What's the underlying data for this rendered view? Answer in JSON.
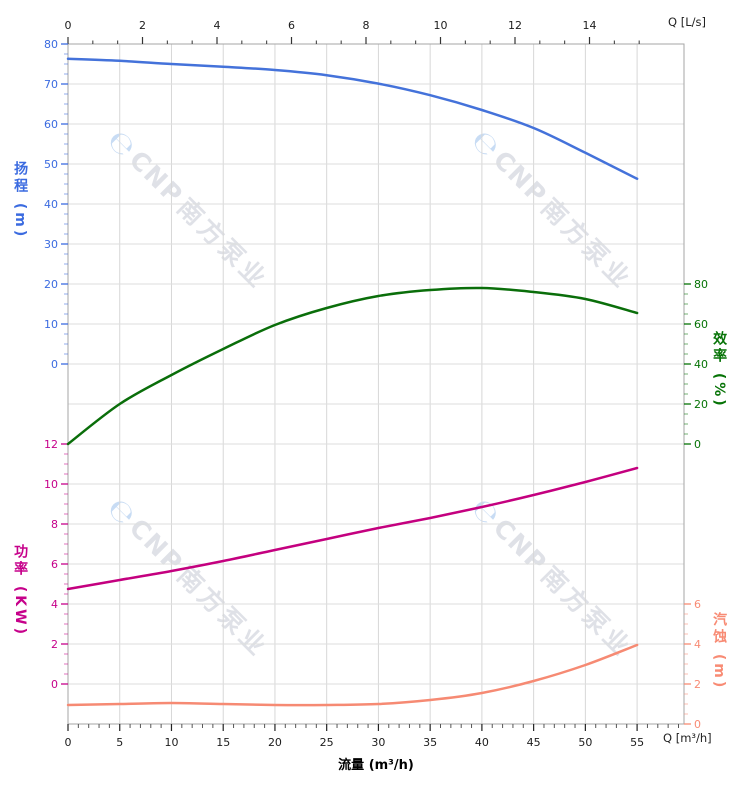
{
  "watermark": {
    "logo_glyph": "℮",
    "brand": "CNP",
    "brand_cn": "南方泵业"
  },
  "chart_data": {
    "type": "line",
    "description": "Centrifugal pump performance curves: head, efficiency, power and NPSH versus flow rate",
    "x_m3h": [
      0,
      5,
      10,
      15,
      20,
      25,
      30,
      35,
      40,
      45,
      50,
      55
    ],
    "x_axis_bottom": {
      "title": "流量 (m³/h)",
      "corner_label": "Q [m³/h]",
      "ticks": [
        0,
        5,
        10,
        15,
        20,
        25,
        30,
        35,
        40,
        45,
        50,
        55
      ],
      "minor_step": 1,
      "color": "#1c1c1c"
    },
    "x_axis_top": {
      "corner_label": "Q [L/s]",
      "ticks": [
        0,
        2,
        4,
        6,
        8,
        10,
        12,
        14
      ],
      "minor_divisions": 3,
      "lps_to_m3h": 3.6,
      "color": "#1c1c1c"
    },
    "y_axes": [
      {
        "id": "head",
        "full_title": "扬程 (m)",
        "side": "left",
        "color": "#3b6be0",
        "min": 0,
        "max": 80,
        "major_step": 10,
        "minor_step": 2.5,
        "tick_values": [
          80,
          70,
          60,
          50,
          40,
          30,
          20,
          10,
          0
        ]
      },
      {
        "id": "efficiency",
        "full_title": "效率 (%)",
        "side": "right",
        "color": "#067306",
        "min": 0,
        "max": 80,
        "major_step": 20,
        "minor_step": 5,
        "tick_values": [
          80,
          60,
          40,
          20,
          0
        ]
      },
      {
        "id": "power",
        "full_title": "功率 (KW)",
        "side": "left",
        "color": "#c6008a",
        "min": 0,
        "max": 12,
        "major_step": 2,
        "minor_step": 0.5,
        "tick_values": [
          12,
          10,
          8,
          6,
          4,
          2,
          0
        ]
      },
      {
        "id": "npsh",
        "full_title": "汽蚀 (m)",
        "side": "right",
        "color": "#f88b74",
        "min": 0,
        "max": 6,
        "major_step": 2,
        "minor_step": 0.5,
        "tick_values": [
          6,
          4,
          2,
          0
        ]
      }
    ],
    "series": [
      {
        "id": "head",
        "name": "扬程",
        "axis": "head",
        "color": "#4472da",
        "values": [
          76.3,
          75.8,
          75.0,
          74.3,
          73.5,
          72.2,
          70.1,
          67.2,
          63.5,
          59.0,
          52.8,
          46.3
        ]
      },
      {
        "id": "efficiency",
        "name": "效率",
        "axis": "efficiency",
        "color": "#0a6e0a",
        "values": [
          0,
          20,
          34.5,
          47.5,
          59.5,
          68,
          74,
          77,
          78,
          76,
          72.5,
          65.5
        ]
      },
      {
        "id": "power",
        "name": "功率",
        "axis": "power",
        "color": "#c4007f",
        "values": [
          4.75,
          5.2,
          5.65,
          6.15,
          6.7,
          7.25,
          7.8,
          8.3,
          8.85,
          9.45,
          10.1,
          10.8
        ]
      },
      {
        "id": "npsh",
        "name": "汽蚀",
        "axis": "npsh",
        "color": "#f68a73",
        "values": [
          0.95,
          1.0,
          1.05,
          1.0,
          0.95,
          0.95,
          1.0,
          1.2,
          1.55,
          2.15,
          2.95,
          3.95
        ]
      }
    ],
    "grid": true,
    "legend": "none"
  }
}
